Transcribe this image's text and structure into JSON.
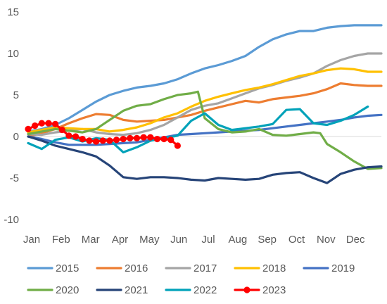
{
  "chart_data": {
    "type": "line",
    "title": "",
    "xlabel": "",
    "ylabel": "",
    "ylim": [
      -10,
      15
    ],
    "yticks": [
      15,
      10,
      5,
      0,
      -5,
      -10
    ],
    "xlim": [
      0,
      52
    ],
    "months": [
      "Jan",
      "Feb",
      "Mar",
      "Apr",
      "May",
      "Jun",
      "Jul",
      "Aug",
      "Sep",
      "Oct",
      "Nov",
      "Dec"
    ],
    "grid": false,
    "legend_position": "bottom",
    "series": [
      {
        "name": "2015",
        "color": "#5b9bd5",
        "marker": false,
        "x": [
          0,
          2,
          4,
          6,
          8,
          9,
          10,
          12,
          14,
          16,
          18,
          20,
          22,
          24,
          26,
          28,
          30,
          32,
          34,
          36,
          37,
          38,
          40,
          42,
          44,
          46,
          48,
          50,
          52
        ],
        "y": [
          0.6,
          0.9,
          1.4,
          2.2,
          3.2,
          3.7,
          4.2,
          5.0,
          5.5,
          5.9,
          6.1,
          6.4,
          6.9,
          7.6,
          8.2,
          8.6,
          9.1,
          9.7,
          10.8,
          11.7,
          12.0,
          12.3,
          12.7,
          12.7,
          13.1,
          13.3,
          13.4,
          13.4,
          13.4
        ]
      },
      {
        "name": "2016",
        "color": "#ed7d31",
        "marker": false,
        "x": [
          0,
          2,
          4,
          6,
          8,
          10,
          12,
          14,
          16,
          18,
          20,
          22,
          24,
          26,
          28,
          30,
          32,
          34,
          36,
          38,
          40,
          42,
          44,
          46,
          48,
          50,
          52
        ],
        "y": [
          0.0,
          0.4,
          0.9,
          1.6,
          2.2,
          2.7,
          2.6,
          2.0,
          1.8,
          1.9,
          2.0,
          2.3,
          2.6,
          3.1,
          3.5,
          3.9,
          4.3,
          4.1,
          4.5,
          4.7,
          4.9,
          5.2,
          5.7,
          6.4,
          6.2,
          6.1,
          6.1
        ]
      },
      {
        "name": "2017",
        "color": "#a5a5a5",
        "marker": false,
        "x": [
          0,
          2,
          4,
          6,
          8,
          10,
          12,
          14,
          16,
          18,
          20,
          22,
          24,
          26,
          28,
          30,
          32,
          34,
          36,
          38,
          40,
          42,
          44,
          46,
          48,
          50,
          52
        ],
        "y": [
          0.3,
          0.2,
          0.5,
          0.7,
          0.9,
          0.5,
          0.3,
          0.2,
          0.4,
          0.8,
          1.4,
          2.3,
          3.2,
          3.7,
          4.0,
          4.6,
          5.2,
          5.8,
          6.2,
          6.7,
          7.1,
          7.6,
          8.5,
          9.2,
          9.7,
          10.0,
          10.0
        ]
      },
      {
        "name": "2018",
        "color": "#ffc000",
        "marker": false,
        "x": [
          0,
          2,
          4,
          6,
          8,
          10,
          12,
          14,
          16,
          18,
          20,
          22,
          24,
          26,
          28,
          30,
          32,
          34,
          36,
          38,
          40,
          42,
          44,
          46,
          48,
          50,
          52
        ],
        "y": [
          0.5,
          0.8,
          1.1,
          1.0,
          0.9,
          0.9,
          0.6,
          0.8,
          1.1,
          1.6,
          2.3,
          2.8,
          3.6,
          4.3,
          4.8,
          5.2,
          5.6,
          5.9,
          6.3,
          6.8,
          7.3,
          7.6,
          8.0,
          8.2,
          8.1,
          7.8,
          7.8
        ]
      },
      {
        "name": "2019",
        "color": "#4472c4",
        "marker": false,
        "x": [
          0,
          2,
          4,
          6,
          8,
          10,
          12,
          14,
          16,
          18,
          20,
          22,
          24,
          26,
          28,
          30,
          32,
          34,
          36,
          38,
          40,
          42,
          44,
          46,
          48,
          50,
          52
        ],
        "y": [
          0.0,
          -0.3,
          -0.7,
          -1.0,
          -1.0,
          -1.0,
          -0.9,
          -0.8,
          -0.7,
          -0.4,
          -0.1,
          0.2,
          0.3,
          0.4,
          0.5,
          0.6,
          0.7,
          0.8,
          1.0,
          1.2,
          1.4,
          1.6,
          1.8,
          2.0,
          2.3,
          2.5,
          2.6
        ]
      },
      {
        "name": "2020",
        "color": "#70ad47",
        "marker": false,
        "x": [
          0,
          2,
          4,
          6,
          8,
          10,
          12,
          14,
          16,
          18,
          20,
          22,
          24,
          25,
          26,
          28,
          30,
          32,
          34,
          36,
          38,
          40,
          42,
          43,
          44,
          46,
          48,
          50,
          52
        ],
        "y": [
          0.3,
          0.6,
          0.9,
          0.7,
          0.5,
          0.9,
          2.0,
          3.1,
          3.7,
          3.9,
          4.5,
          5.0,
          5.2,
          5.4,
          2.2,
          0.9,
          0.5,
          0.6,
          0.9,
          0.2,
          0.1,
          0.3,
          0.5,
          0.4,
          -0.9,
          -1.9,
          -3.0,
          -3.9,
          -3.8
        ]
      },
      {
        "name": "2021",
        "color": "#264478",
        "marker": false,
        "x": [
          0,
          2,
          4,
          6,
          8,
          10,
          12,
          14,
          16,
          18,
          20,
          22,
          24,
          26,
          28,
          30,
          32,
          34,
          36,
          38,
          40,
          42,
          44,
          46,
          48,
          50,
          52
        ],
        "y": [
          0.0,
          -0.5,
          -1.1,
          -1.5,
          -1.9,
          -2.4,
          -3.5,
          -4.9,
          -5.1,
          -4.9,
          -4.9,
          -5.0,
          -5.2,
          -5.3,
          -5.0,
          -5.1,
          -5.2,
          -5.1,
          -4.6,
          -4.4,
          -4.3,
          -5.0,
          -5.6,
          -4.5,
          -4.0,
          -3.7,
          -3.6
        ]
      },
      {
        "name": "2022",
        "color": "#00a2b9",
        "marker": false,
        "x": [
          0,
          2,
          4,
          6,
          8,
          10,
          12,
          14,
          16,
          18,
          20,
          22,
          24,
          26,
          28,
          30,
          32,
          34,
          36,
          38,
          40,
          42,
          44,
          46,
          48,
          50
        ],
        "y": [
          -0.8,
          -1.5,
          -0.4,
          -0.1,
          -0.6,
          -0.2,
          -0.4,
          -1.9,
          -1.3,
          -0.5,
          -0.2,
          0.1,
          1.9,
          2.8,
          1.4,
          0.8,
          1.0,
          1.2,
          1.5,
          3.2,
          3.3,
          1.6,
          1.4,
          1.9,
          2.6,
          3.6
        ]
      },
      {
        "name": "2023",
        "color": "#ff0000",
        "marker": true,
        "x": [
          0,
          1,
          2,
          3,
          4,
          5,
          6,
          7,
          8,
          9,
          10,
          11,
          12,
          13,
          14,
          15,
          16,
          17,
          18,
          19,
          20,
          21,
          22
        ],
        "y": [
          0.9,
          1.3,
          1.6,
          1.6,
          1.5,
          0.8,
          0.1,
          0.0,
          -0.3,
          -0.5,
          -0.6,
          -0.5,
          -0.5,
          -0.4,
          -0.3,
          -0.2,
          -0.2,
          -0.1,
          -0.1,
          -0.3,
          -0.3,
          -0.4,
          -1.1
        ]
      }
    ]
  }
}
